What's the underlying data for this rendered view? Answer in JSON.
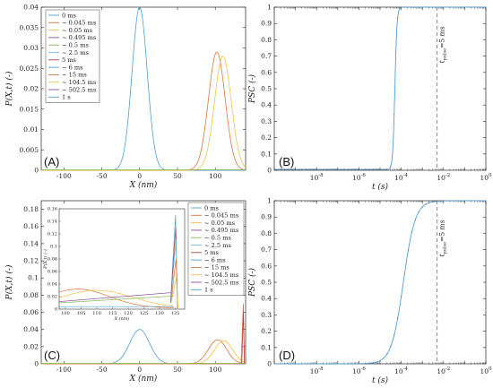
{
  "colors": {
    "palette": [
      "#4d9fd6",
      "#e0723b",
      "#eec048",
      "#8a4f9e",
      "#86b84c",
      "#6fc1ea",
      "#b0423e",
      "#4d9fd6",
      "#e0723b",
      "#eec048",
      "#8a4f9e"
    ],
    "pulse_line": "#555555"
  },
  "legend_entries": [
    "0 ms",
    "~ 0.045 ms",
    "~ 0.05 ms",
    "~ 0.495 ms",
    "~ 0.5 ms",
    "~ 2.5 ms",
    "5 ms",
    "~ 6 ms",
    "~ 15 ms",
    "~ 104.5 ms",
    "~ 502.5 ms",
    "1 s"
  ],
  "panels": {
    "A": {
      "tag": "(A)",
      "xlabel": "X (nm)",
      "ylabel": "P(X,t) (-)"
    },
    "B": {
      "tag": "(B)",
      "xlabel": "t (s)",
      "ylabel": "PSC (-)",
      "annotation": "t_pulse = 5 ms"
    },
    "C": {
      "tag": "(C)",
      "xlabel": "X (nm)",
      "ylabel": "P(X,t) (-)",
      "inset": {
        "xlabel": "X (nm)",
        "ylabel": "P(X,t) (-)"
      }
    },
    "D": {
      "tag": "(D)",
      "xlabel": "t (s)",
      "ylabel": "PSC (-)",
      "annotation": "t_pulse = 5 ms"
    }
  },
  "chart_data": [
    {
      "panel": "A",
      "type": "line",
      "xlabel": "X (nm)",
      "ylabel": "P(X,t) (-)",
      "xlim": [
        -130,
        140
      ],
      "ylim": [
        0,
        0.04
      ],
      "xticks": [
        -100,
        -50,
        0,
        50,
        100
      ],
      "yticks": [
        0,
        0.005,
        0.01,
        0.015,
        0.02,
        0.025,
        0.03,
        0.035,
        0.04
      ],
      "ytick_labels": [
        "0",
        "0.005",
        "0.01",
        "0.015",
        "0.02",
        "0.025",
        "0.03",
        "0.035",
        "0.04"
      ],
      "legend_position": "top-left",
      "series": [
        {
          "name": "0 ms",
          "color_index": 0,
          "gaussian": {
            "mu": 0,
            "sigma": 10,
            "peak": 0.04
          }
        },
        {
          "name": "~ 0.045 ms",
          "color_index": 1,
          "gaussian": {
            "mu": 102,
            "sigma": 11,
            "peak": 0.029
          }
        },
        {
          "name": "~ 0.05 ms",
          "color_index": 2,
          "gaussian": {
            "mu": 110,
            "sigma": 11,
            "peak": 0.028
          }
        }
      ]
    },
    {
      "panel": "B",
      "type": "line",
      "xlabel": "t (s)",
      "ylabel": "PSC (-)",
      "xscale": "log",
      "xlim_exp": [
        -10,
        0
      ],
      "xticks_exp": [
        -8,
        -6,
        -4,
        -2,
        0
      ],
      "ylim": [
        0,
        1
      ],
      "yticks": [
        0,
        0.1,
        0.2,
        0.3,
        0.4,
        0.5,
        0.6,
        0.7,
        0.8,
        0.9,
        1
      ],
      "ytick_labels": [
        "0",
        "0.1",
        "0.2",
        "0.3",
        "0.4",
        "0.5",
        "0.6",
        "0.7",
        "0.8",
        "0.9",
        "1"
      ],
      "pulse_time_s": 0.005,
      "series": [
        {
          "color_index": 0,
          "logistic": {
            "center_exp": -4.3,
            "width": 0.05,
            "baseline": 0.005
          }
        }
      ]
    },
    {
      "panel": "C",
      "type": "line",
      "xlabel": "X (nm)",
      "ylabel": "P(X,t) (-)",
      "xlim": [
        -130,
        140
      ],
      "ylim": [
        0,
        0.19
      ],
      "xticks": [
        -100,
        -50,
        0,
        50,
        100
      ],
      "yticks": [
        0,
        0.02,
        0.04,
        0.06,
        0.08,
        0.1,
        0.12,
        0.14,
        0.16,
        0.18
      ],
      "ytick_labels": [
        "0",
        "0.02",
        "0.04",
        "0.06",
        "0.08",
        "0.1",
        "0.12",
        "0.14",
        "0.16",
        "0.18"
      ],
      "legend_position": "top-right",
      "series": [
        {
          "name": "0 ms",
          "color_index": 0,
          "gaussian": {
            "mu": 0,
            "sigma": 13,
            "peak": 0.04
          }
        },
        {
          "name": "~ 0.045 ms",
          "color_index": 1,
          "gaussian": {
            "mu": 103,
            "sigma": 12,
            "peak": 0.028
          }
        },
        {
          "name": "~ 0.05 ms",
          "color_index": 2,
          "gaussian": {
            "mu": 111,
            "sigma": 12,
            "peak": 0.027
          }
        },
        {
          "name": "~ 15 ms",
          "color_index": 8,
          "wall": {
            "pos": 137,
            "width": 1.5,
            "peak": 0.07
          }
        }
      ],
      "inset": {
        "xlim": [
          98,
          138
        ],
        "ylim": [
          0,
          0.16
        ],
        "xticks": [
          100,
          105,
          110,
          115,
          120,
          125,
          130,
          135
        ],
        "yticks": [
          0,
          0.02,
          0.04,
          0.06,
          0.08,
          0.1,
          0.12,
          0.14,
          0.16
        ],
        "ytick_labels": [
          "0",
          "0.02",
          "0.04",
          "0.06",
          "0.08",
          "0.1",
          "0.12",
          "0.14",
          "0.16"
        ],
        "xlabel": "X (nm)",
        "ylabel": "P(X,t) (-)"
      }
    },
    {
      "panel": "D",
      "type": "line",
      "xlabel": "t (s)",
      "ylabel": "PSC (-)",
      "xscale": "log",
      "xlim_exp": [
        -10,
        0
      ],
      "xticks_exp": [
        -8,
        -6,
        -4,
        -2,
        0
      ],
      "ylim": [
        0,
        1
      ],
      "yticks": [
        0,
        0.1,
        0.2,
        0.3,
        0.4,
        0.5,
        0.6,
        0.7,
        0.8,
        0.9,
        1
      ],
      "ytick_labels": [
        "0",
        "0.1",
        "0.2",
        "0.3",
        "0.4",
        "0.5",
        "0.6",
        "0.7",
        "0.8",
        "0.9",
        "1"
      ],
      "pulse_time_s": 0.005,
      "series": [
        {
          "color_index": 0,
          "logistic": {
            "center_exp": -3.9,
            "width": 0.28,
            "baseline": 0.0
          }
        }
      ]
    }
  ]
}
